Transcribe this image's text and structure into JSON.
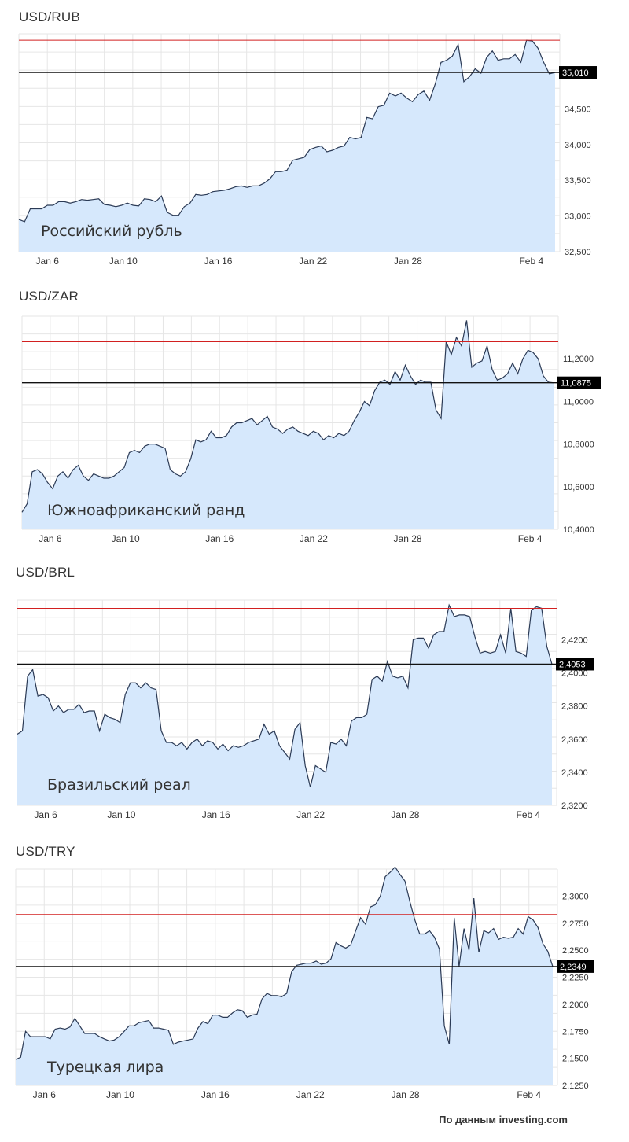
{
  "footer": "По данным investing.com",
  "colors": {
    "line": "#2b3a55",
    "fill": "#d6e8fc",
    "grid": "#e6e6e6",
    "ref": "#d22020",
    "last": "#111111",
    "label_bg": "#000000",
    "label_fg": "#ffffff"
  },
  "chart_data": [
    {
      "type": "area",
      "title": "USD/RUB",
      "series_label": "Российский рубль",
      "x_ticks": [
        "Jan 6",
        "Jan 10",
        "Jan 16",
        "Jan 22",
        "Jan 28",
        "Feb 4"
      ],
      "x_tick_pos": [
        3,
        11,
        21,
        31,
        41,
        54
      ],
      "y_ticks": [
        "32,500",
        "33,000",
        "33,500",
        "34,000",
        "34,500"
      ],
      "y_tick_vals": [
        32500,
        33000,
        33500,
        34000,
        34500
      ],
      "ylim": [
        32500,
        35550
      ],
      "ref_value": 35460,
      "last_value": 35010,
      "last_label": "35,010",
      "values": [
        32950,
        32920,
        33100,
        33100,
        33100,
        33150,
        33150,
        33200,
        33200,
        33180,
        33200,
        33230,
        33220,
        33230,
        33240,
        33160,
        33150,
        33130,
        33150,
        33180,
        33150,
        33140,
        33240,
        33230,
        33200,
        33280,
        33050,
        33010,
        33010,
        33130,
        33180,
        33300,
        33290,
        33300,
        33340,
        33350,
        33360,
        33380,
        33410,
        33420,
        33400,
        33420,
        33420,
        33460,
        33520,
        33620,
        33620,
        33640,
        33780,
        33800,
        33820,
        33930,
        33960,
        33980,
        33900,
        33920,
        33960,
        33980,
        34100,
        34080,
        34100,
        34380,
        34360,
        34530,
        34550,
        34720,
        34680,
        34720,
        34650,
        34600,
        34700,
        34750,
        34620,
        34850,
        35150,
        35180,
        35240,
        35400,
        34880,
        34950,
        35060,
        35000,
        35220,
        35310,
        35180,
        35200,
        35200,
        35260,
        35150,
        35460,
        35450,
        35350,
        35150,
        34990,
        35010
      ]
    },
    {
      "type": "area",
      "title": "USD/ZAR",
      "series_label": "Южноафриканский ранд",
      "x_ticks": [
        "Jan 6",
        "Jan 10",
        "Jan 16",
        "Jan 22",
        "Jan 28",
        "Feb 4"
      ],
      "x_tick_pos": [
        3,
        11,
        21,
        31,
        41,
        54
      ],
      "y_ticks": [
        "10,4000",
        "10,6000",
        "10,8000",
        "11,0000",
        "11,2000"
      ],
      "y_tick_vals": [
        10.4,
        10.6,
        10.8,
        11.0,
        11.2
      ],
      "ylim": [
        10.4,
        11.4
      ],
      "ref_value": 11.28,
      "last_value": 11.0875,
      "last_label": "11,0875",
      "values": [
        10.48,
        10.52,
        10.67,
        10.68,
        10.66,
        10.62,
        10.59,
        10.65,
        10.67,
        10.64,
        10.68,
        10.7,
        10.65,
        10.63,
        10.66,
        10.65,
        10.64,
        10.64,
        10.65,
        10.67,
        10.69,
        10.76,
        10.77,
        10.76,
        10.79,
        10.8,
        10.8,
        10.79,
        10.78,
        10.68,
        10.66,
        10.65,
        10.67,
        10.73,
        10.82,
        10.81,
        10.82,
        10.86,
        10.83,
        10.83,
        10.84,
        10.88,
        10.9,
        10.9,
        10.91,
        10.92,
        10.89,
        10.91,
        10.93,
        10.88,
        10.87,
        10.85,
        10.87,
        10.88,
        10.86,
        10.85,
        10.84,
        10.86,
        10.85,
        10.82,
        10.84,
        10.83,
        10.85,
        10.84,
        10.86,
        10.91,
        10.95,
        11.0,
        10.98,
        11.05,
        11.09,
        11.1,
        11.08,
        11.14,
        11.1,
        11.17,
        11.12,
        11.08,
        11.1,
        11.09,
        11.09,
        10.96,
        10.92,
        11.28,
        11.22,
        11.3,
        11.26,
        11.38,
        11.16,
        11.18,
        11.19,
        11.26,
        11.15,
        11.1,
        11.11,
        11.13,
        11.18,
        11.13,
        11.2,
        11.24,
        11.23,
        11.2,
        11.12,
        11.09,
        11.0875
      ]
    },
    {
      "type": "area",
      "title": "USD/BRL",
      "series_label": "Бразильский реал",
      "x_ticks": [
        "Jan 6",
        "Jan 10",
        "Jan 16",
        "Jan 22",
        "Jan 28",
        "Feb 4"
      ],
      "x_tick_pos": [
        3,
        11,
        21,
        31,
        41,
        54
      ],
      "y_ticks": [
        "2,3200",
        "2,3400",
        "2,3600",
        "2,3800",
        "2,4000",
        "2,4200"
      ],
      "y_tick_vals": [
        2.32,
        2.34,
        2.36,
        2.38,
        2.4,
        2.42
      ],
      "ylim": [
        2.32,
        2.444
      ],
      "ref_value": 2.439,
      "last_value": 2.4053,
      "last_label": "2,4053",
      "values": [
        2.363,
        2.365,
        2.398,
        2.402,
        2.386,
        2.387,
        2.385,
        2.377,
        2.38,
        2.376,
        2.378,
        2.378,
        2.381,
        2.376,
        2.377,
        2.377,
        2.365,
        2.375,
        2.373,
        2.372,
        2.37,
        2.387,
        2.394,
        2.394,
        2.391,
        2.394,
        2.391,
        2.39,
        2.365,
        2.358,
        2.358,
        2.356,
        2.358,
        2.354,
        2.358,
        2.36,
        2.356,
        2.359,
        2.358,
        2.354,
        2.357,
        2.353,
        2.356,
        2.355,
        2.356,
        2.358,
        2.359,
        2.36,
        2.369,
        2.363,
        2.365,
        2.356,
        2.352,
        2.348,
        2.366,
        2.37,
        2.344,
        2.331,
        2.344,
        2.342,
        2.34,
        2.358,
        2.357,
        2.36,
        2.356,
        2.371,
        2.373,
        2.373,
        2.375,
        2.396,
        2.398,
        2.395,
        2.407,
        2.398,
        2.397,
        2.398,
        2.391,
        2.42,
        2.421,
        2.421,
        2.415,
        2.423,
        2.425,
        2.425,
        2.441,
        2.434,
        2.435,
        2.435,
        2.434,
        2.422,
        2.412,
        2.413,
        2.412,
        2.413,
        2.423,
        2.412,
        2.439,
        2.413,
        2.412,
        2.41,
        2.438,
        2.44,
        2.439,
        2.416,
        2.4053
      ]
    },
    {
      "type": "area",
      "title": "USD/TRY",
      "series_label": "Турецкая лира",
      "x_ticks": [
        "Jan 6",
        "Jan 10",
        "Jan 16",
        "Jan 22",
        "Jan 28",
        "Feb 4"
      ],
      "x_tick_pos": [
        3,
        11,
        21,
        31,
        41,
        54
      ],
      "y_ticks": [
        "2,1250",
        "2,1500",
        "2,1750",
        "2,2000",
        "2,2250",
        "2,2500",
        "2,2750",
        "2,3000"
      ],
      "y_tick_vals": [
        2.125,
        2.15,
        2.175,
        2.2,
        2.225,
        2.25,
        2.275,
        2.3
      ],
      "ylim": [
        2.125,
        2.325
      ],
      "ref_value": 2.283,
      "last_value": 2.2349,
      "last_label": "2,2349",
      "values": [
        2.149,
        2.151,
        2.175,
        2.17,
        2.17,
        2.17,
        2.17,
        2.168,
        2.177,
        2.178,
        2.177,
        2.179,
        2.187,
        2.18,
        2.173,
        2.173,
        2.173,
        2.17,
        2.168,
        2.166,
        2.167,
        2.17,
        2.175,
        2.18,
        2.18,
        2.183,
        2.184,
        2.185,
        2.178,
        2.178,
        2.177,
        2.176,
        2.163,
        2.165,
        2.166,
        2.167,
        2.168,
        2.178,
        2.184,
        2.182,
        2.19,
        2.19,
        2.188,
        2.188,
        2.192,
        2.195,
        2.194,
        2.188,
        2.19,
        2.191,
        2.205,
        2.21,
        2.208,
        2.208,
        2.207,
        2.21,
        2.23,
        2.236,
        2.237,
        2.238,
        2.238,
        2.24,
        2.237,
        2.238,
        2.242,
        2.257,
        2.254,
        2.252,
        2.255,
        2.268,
        2.28,
        2.274,
        2.29,
        2.292,
        2.3,
        2.318,
        2.322,
        2.327,
        2.32,
        2.314,
        2.295,
        2.278,
        2.265,
        2.265,
        2.268,
        2.262,
        2.251,
        2.18,
        2.163,
        2.28,
        2.235,
        2.27,
        2.25,
        2.298,
        2.248,
        2.268,
        2.266,
        2.27,
        2.26,
        2.262,
        2.261,
        2.262,
        2.27,
        2.265,
        2.281,
        2.278,
        2.271,
        2.256,
        2.249,
        2.2349
      ]
    }
  ]
}
